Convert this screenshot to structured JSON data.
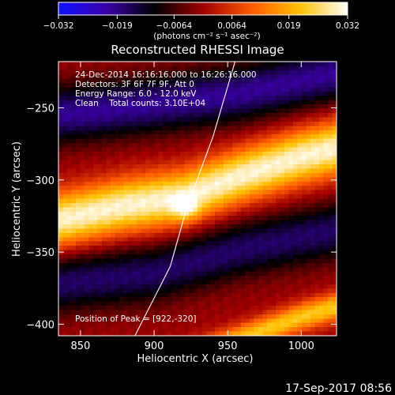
{
  "chart_data": {
    "type": "heatmap",
    "title": "Reconstructed RHESSI Image",
    "xlabel": "Heliocentric X (arcsec)",
    "ylabel": "Heliocentric Y (arcsec)",
    "xlim": [
      835,
      1024
    ],
    "ylim": [
      -408,
      -218
    ],
    "x_ticks": [
      850,
      900,
      950,
      1000
    ],
    "y_ticks": [
      -250,
      -300,
      -350,
      -400
    ],
    "colorbar": {
      "range": [
        -0.032,
        0.032
      ],
      "ticks": [
        -0.032,
        -0.019,
        -0.0064,
        0.0064,
        0.019,
        0.032
      ],
      "tick_labels": [
        "−0.032",
        "−0.019",
        "−0.0064",
        "0.0064",
        "0.019",
        "0.032"
      ],
      "unit_label": "(photons cm⁻² s⁻¹ asec⁻²)",
      "colormap": [
        "#1010ff",
        "#3a00a8",
        "#000000",
        "#a00000",
        "#ff5a00",
        "#ffc000",
        "#ffffff"
      ]
    },
    "annotations": [
      "24-Dec-2014 16:16:16.000 to 16:26:16.000",
      "Detectors: 3F 6F 7F 9F, Att 0",
      "Energy Range: 6.0 - 12.0 keV",
      "Clean    Total counts: 3.10E+04"
    ],
    "peak": {
      "x": 922,
      "y": -320,
      "label": "Position of Peak = [922,-320]"
    },
    "limb": [
      [
        887,
        -408
      ],
      [
        911,
        -360
      ],
      [
        922,
        -320
      ],
      [
        940,
        -270
      ],
      [
        955,
        -218
      ]
    ],
    "bands": [
      {
        "sign": "positive",
        "center_line": [
          [
            835,
            -328
          ],
          [
            880,
            -318
          ],
          [
            920,
            -312
          ],
          [
            960,
            -297
          ],
          [
            1000,
            -284
          ],
          [
            1024,
            -278
          ]
        ],
        "width_arcsec": 19,
        "peak": 1.0
      },
      {
        "sign": "positive",
        "center_line": [
          [
            965,
            -408
          ],
          [
            1000,
            -395
          ],
          [
            1024,
            -388
          ]
        ],
        "width_arcsec": 10,
        "peak": 0.75
      },
      {
        "sign": "negative",
        "center_line": [
          [
            835,
            -255
          ],
          [
            900,
            -248
          ],
          [
            960,
            -240
          ],
          [
            1024,
            -226
          ]
        ],
        "width_arcsec": 20,
        "peak": 0.65
      },
      {
        "sign": "negative",
        "center_line": [
          [
            835,
            -372
          ],
          [
            900,
            -365
          ],
          [
            960,
            -348
          ],
          [
            1024,
            -335
          ]
        ],
        "width_arcsec": 20,
        "peak": 0.55
      }
    ]
  },
  "footer": {
    "timestamp": "17-Sep-2017 08:56"
  }
}
